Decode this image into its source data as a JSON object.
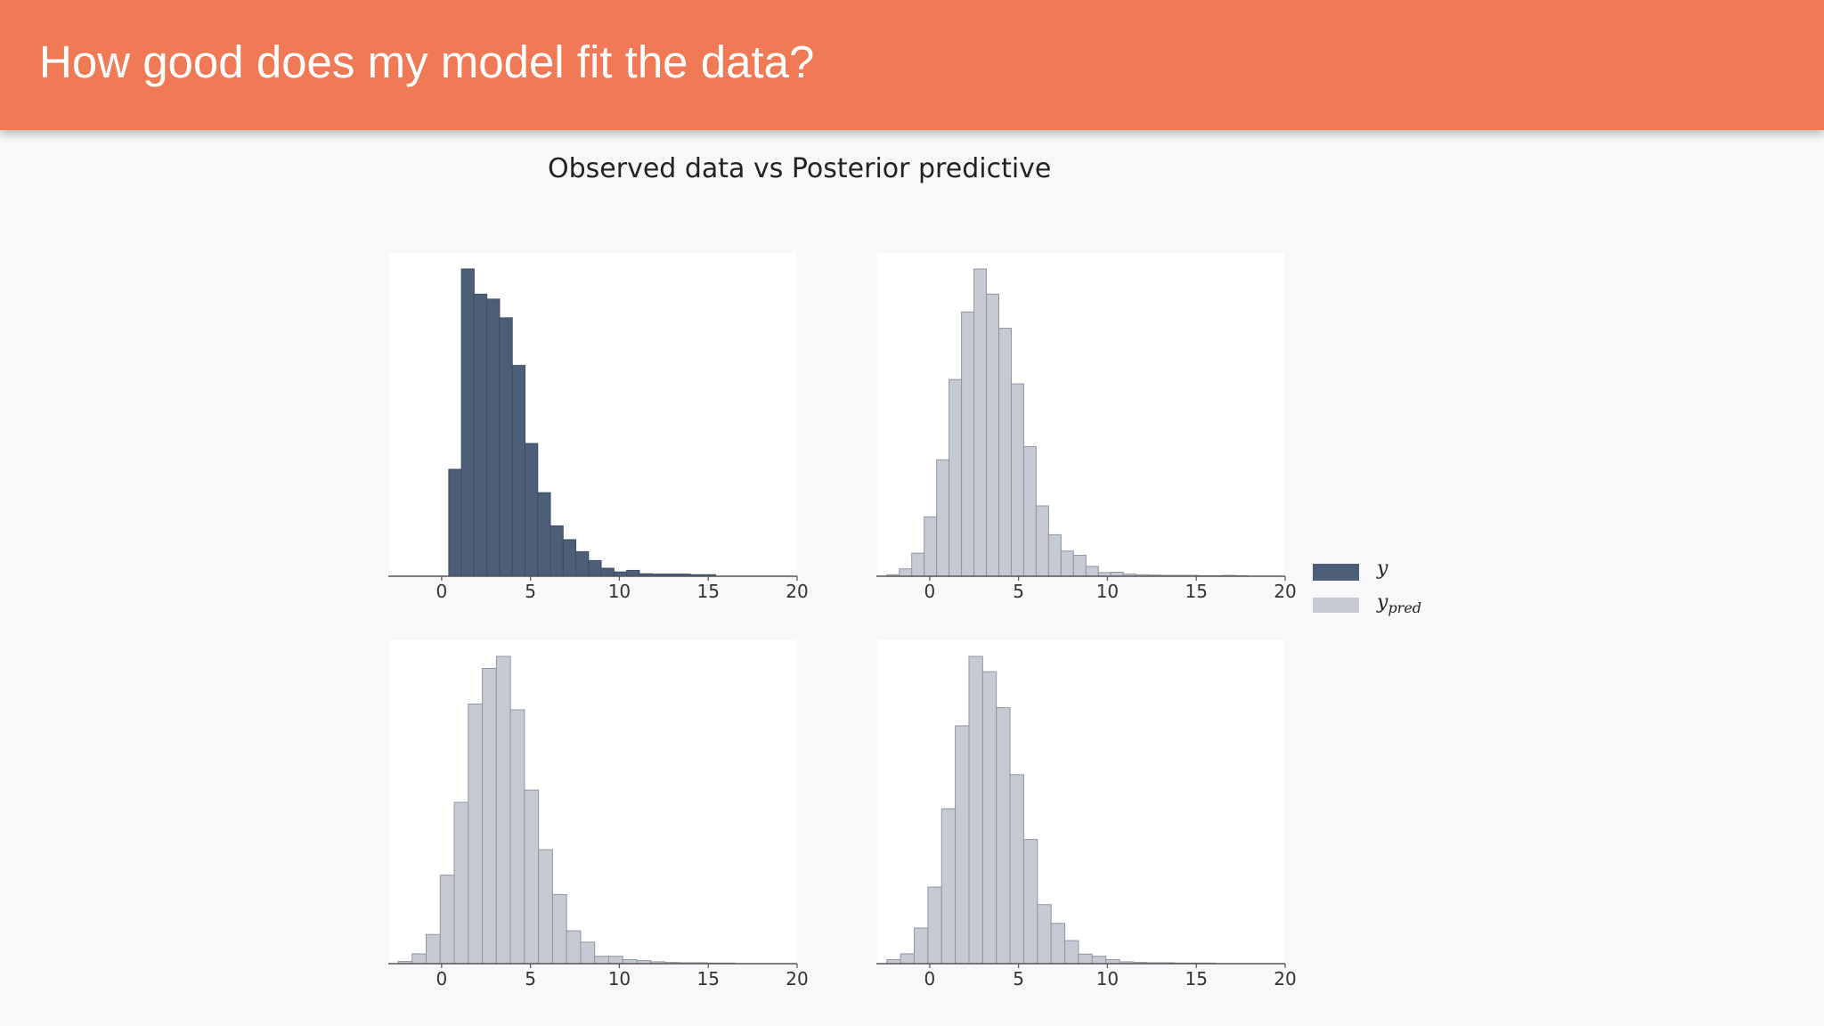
{
  "header": {
    "title": "How good does my model fit the data?",
    "background_color": "#EF7A55"
  },
  "chart_data": {
    "type": "bar",
    "subtype": "histogram-grid",
    "title": "Observed data vs Posterior predictive",
    "xlabel": "",
    "ylabel": "",
    "xlim": [
      -3,
      20
    ],
    "xticks": [
      0,
      5,
      10,
      15,
      20
    ],
    "grid": false,
    "legend_position": "right",
    "legend": [
      {
        "key": "y",
        "label": "y",
        "subscript": "",
        "color": "#4D5E78"
      },
      {
        "key": "ypred",
        "label": "y",
        "subscript": "pred",
        "color": "#C6CBD3"
      }
    ],
    "panels": [
      {
        "position": "top-left",
        "series": "y",
        "color": "#4D5E78",
        "edge_color": "#3E4D64",
        "bin_start": 0.4,
        "bin_width": 0.715,
        "values": [
          34.8,
          100,
          91.8,
          90.2,
          84.1,
          68.6,
          43.2,
          27.2,
          16.4,
          11.9,
          8.0,
          5.1,
          2.6,
          1.4,
          1.9,
          0.8,
          0.7,
          0.7,
          0.7,
          0.5,
          0.5
        ]
      },
      {
        "position": "top-right",
        "series": "ypred",
        "color": "#C6CBD3",
        "edge_color": "#8E96A3",
        "bin_start": -2.41,
        "bin_width": 0.7,
        "values": [
          0.5,
          2.4,
          7.5,
          19.3,
          37.9,
          64.0,
          86.0,
          100,
          91.8,
          80.7,
          62.6,
          42.2,
          22.9,
          13.5,
          8.2,
          6.8,
          3.2,
          1.2,
          1.3,
          0.7,
          0.5,
          0.4,
          0.3,
          0.3,
          0.3,
          0.2,
          0.2,
          0.3,
          0.2
        ]
      },
      {
        "position": "bottom-left",
        "series": "ypred",
        "color": "#C6CBD3",
        "edge_color": "#8E96A3",
        "bin_start": -2.45,
        "bin_width": 0.79,
        "values": [
          0.7,
          3.2,
          9.5,
          28.8,
          52.5,
          84.5,
          96.1,
          100,
          82.6,
          56.5,
          37.1,
          22.5,
          10.7,
          7.0,
          2.4,
          2.4,
          1.3,
          1.0,
          0.6,
          0.4,
          0.3,
          0.3,
          0.2,
          0.2
        ]
      },
      {
        "position": "bottom-right",
        "series": "ypred",
        "color": "#C6CBD3",
        "edge_color": "#8E96A3",
        "bin_start": -2.41,
        "bin_width": 0.77,
        "values": [
          1.3,
          3.2,
          11.6,
          24.9,
          50.4,
          77.4,
          100,
          95.0,
          83.3,
          61.5,
          40.4,
          19.2,
          13.1,
          7.5,
          3.1,
          2.4,
          1.3,
          0.6,
          0.4,
          0.3,
          0.3,
          0.2,
          0.2,
          0.2
        ]
      }
    ]
  }
}
